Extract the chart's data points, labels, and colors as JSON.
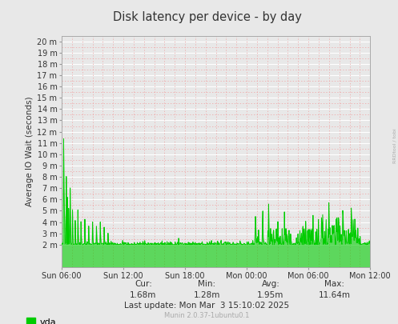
{
  "title": "Disk latency per device - by day",
  "ylabel": "Average IO Wait (seconds)",
  "bg_color": "#e8e8e8",
  "plot_bg_color": "#e8e8e8",
  "grid_color_major": "#ffffff",
  "grid_color_minor": "#f0a0a0",
  "line_color": "#00cc00",
  "fill_color": "#00cc00",
  "ylim_min": 0,
  "ylim_max": 0.0205,
  "ytick_labels": [
    "2 m",
    "3 m",
    "4 m",
    "5 m",
    "6 m",
    "7 m",
    "8 m",
    "9 m",
    "10 m",
    "11 m",
    "12 m",
    "13 m",
    "14 m",
    "15 m",
    "16 m",
    "17 m",
    "18 m",
    "19 m",
    "20 m"
  ],
  "ytick_values": [
    0.002,
    0.003,
    0.004,
    0.005,
    0.006,
    0.007,
    0.008,
    0.009,
    0.01,
    0.011,
    0.012,
    0.013,
    0.014,
    0.015,
    0.016,
    0.017,
    0.018,
    0.019,
    0.02
  ],
  "xtick_labels": [
    "Sun 06:00",
    "Sun 12:00",
    "Sun 18:00",
    "Mon 00:00",
    "Mon 06:00",
    "Mon 12:00"
  ],
  "legend_label": "vda",
  "legend_color": "#00cc00",
  "footer_cur_label": "Cur:",
  "footer_cur_val": "1.68m",
  "footer_min_label": "Min:",
  "footer_min_val": "1.28m",
  "footer_avg_label": "Avg:",
  "footer_avg_val": "1.95m",
  "footer_max_label": "Max:",
  "footer_max_val": "11.64m",
  "footer_lastupdate": "Last update: Mon Mar  3 15:10:02 2025",
  "footer_munin": "Munin 2.0.37-1ubuntu0.1",
  "rrdtool_label": "RRDtool / tobi",
  "num_points": 800
}
